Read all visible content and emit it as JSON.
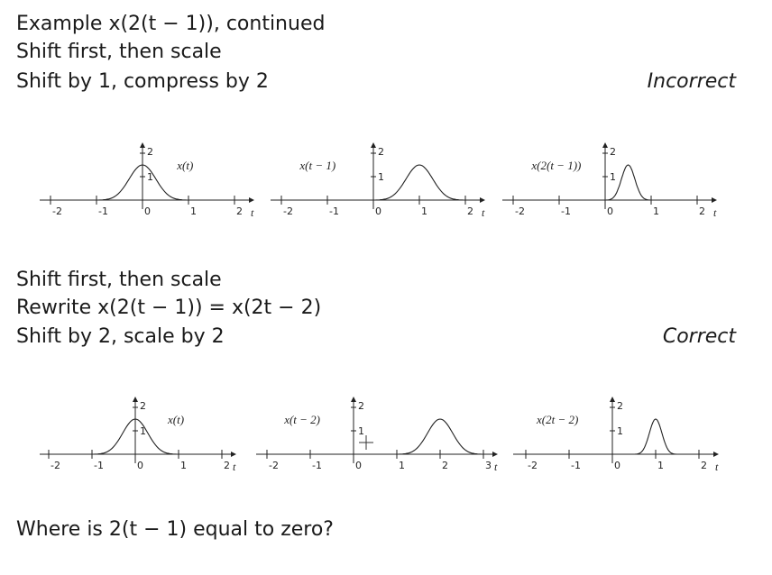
{
  "section1": {
    "title": "Example x(2(t − 1)), continued",
    "line2": "Shift first, then scale",
    "line3": "Shift by 1, compress by 2",
    "verdict": "Incorrect"
  },
  "section2": {
    "line1": "Shift first, then scale",
    "line2": "Rewrite x(2(t − 1)) = x(2t − 2)",
    "line3": "Shift by 2, scale by 2",
    "verdict": "Correct"
  },
  "question": "Where is 2(t − 1) equal to zero?",
  "plots": [
    {
      "id": "r1p1",
      "label": "x(t)",
      "center": 0,
      "width": 1,
      "xticks": [
        "-2",
        "-1",
        "0",
        "1",
        "2"
      ],
      "tick_positions": [
        -2,
        -1,
        0,
        1,
        2
      ],
      "ymax": "2",
      "ymid": "1",
      "t": "t"
    },
    {
      "id": "r1p2",
      "label": "x(t − 1)",
      "center": 1,
      "width": 1,
      "xticks": [
        "-2",
        "-1",
        "0",
        "1",
        "2"
      ],
      "tick_positions": [
        -2,
        -1,
        0,
        1,
        2
      ],
      "ymax": "2",
      "ymid": "1",
      "t": "t"
    },
    {
      "id": "r1p3",
      "label": "x(2(t − 1))",
      "center": 0.5,
      "width": 0.5,
      "xticks": [
        "-2",
        "-1",
        "0",
        "1",
        "2"
      ],
      "tick_positions": [
        -2,
        -1,
        0,
        1,
        2
      ],
      "ymax": "2",
      "ymid": "1",
      "t": "t"
    },
    {
      "id": "r2p1",
      "label": "x(t)",
      "center": 0,
      "width": 1,
      "xticks": [
        "-2",
        "-1",
        "0",
        "1",
        "2"
      ],
      "tick_positions": [
        -2,
        -1,
        0,
        1,
        2
      ],
      "ymax": "2",
      "ymid": "1",
      "t": "t"
    },
    {
      "id": "r2p2",
      "label": "x(t − 2)",
      "center": 2,
      "width": 1,
      "xticks": [
        "-2",
        "-1",
        "0",
        "1",
        "2",
        "3"
      ],
      "tick_positions": [
        -2,
        -1,
        0,
        1,
        2,
        3
      ],
      "ymax": "2",
      "ymid": "1",
      "t": "t"
    },
    {
      "id": "r2p3",
      "label": "x(2t − 2)",
      "center": 1,
      "width": 0.5,
      "xticks": [
        "-2",
        "-1",
        "0",
        "1",
        "2"
      ],
      "tick_positions": [
        -2,
        -1,
        0,
        1,
        2
      ],
      "ymax": "2",
      "ymid": "1",
      "t": "t"
    }
  ]
}
